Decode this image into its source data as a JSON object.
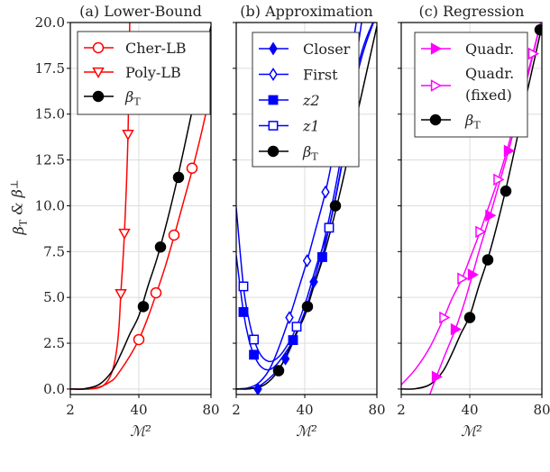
{
  "chart_data": {
    "type": "line",
    "ylabel": "β_T & β^⊥",
    "colors": {
      "red": "#ff0000",
      "blue": "#0000ff",
      "magenta": "#ff00ff",
      "black": "#000000"
    },
    "grid": true,
    "panels": [
      {
        "title": "(a) Lower-Bound",
        "xlabel": "ℳ²",
        "xlim": [
          2,
          80
        ],
        "ylim": [
          -0.3,
          20.0
        ],
        "xticks": [
          2,
          40,
          80
        ],
        "yticks": [
          0.0,
          2.5,
          5.0,
          7.5,
          10.0,
          12.5,
          15.0,
          17.5,
          20.0
        ],
        "ytick_labels": [
          "0.0",
          "2.5",
          "5.0",
          "7.5",
          "10.0",
          "12.5",
          "15.0",
          "17.5",
          "20.0"
        ],
        "legend": "top-right",
        "series": [
          {
            "name": "Cher-LB",
            "color": "#ff0000",
            "marker": "circle",
            "filled": false,
            "curve": [
              [
                2,
                0
              ],
              [
                15,
                0.03
              ],
              [
                25,
                0.45
              ],
              [
                30,
                1.05
              ],
              [
                35,
                1.8
              ],
              [
                40,
                2.7
              ],
              [
                45,
                3.9
              ],
              [
                50,
                5.3
              ],
              [
                55,
                6.8
              ],
              [
                60,
                8.5
              ],
              [
                65,
                10.3
              ],
              [
                70,
                12.1
              ],
              [
                75,
                14.1
              ],
              [
                80,
                16.3
              ]
            ],
            "points": [
              [
                40,
                2.7
              ],
              [
                49.5,
                5.25
              ],
              [
                59.5,
                8.4
              ],
              [
                69.5,
                12.05
              ],
              [
                79,
                16.1
              ]
            ]
          },
          {
            "name": "Poly-LB",
            "color": "#ff0000",
            "marker": "triangle-down",
            "filled": false,
            "curve": [
              [
                2,
                0
              ],
              [
                15,
                0.02
              ],
              [
                21,
                0.25
              ],
              [
                25,
                0.9
              ],
              [
                27.5,
                2.0
              ],
              [
                29,
                3.4
              ],
              [
                30,
                5.2
              ],
              [
                32,
                8.5
              ],
              [
                34,
                13.9
              ],
              [
                35,
                20.5
              ]
            ],
            "points": [
              [
                30,
                5.2
              ],
              [
                32,
                8.5
              ],
              [
                34,
                13.9
              ]
            ]
          },
          {
            "name": "β_T",
            "color": "#000000",
            "marker": "circle",
            "filled": true,
            "curve": [
              [
                2,
                0
              ],
              [
                10,
                0.02
              ],
              [
                18,
                0.25
              ],
              [
                25,
                0.95
              ],
              [
                30,
                1.9
              ],
              [
                35,
                3.0
              ],
              [
                40,
                4.0
              ],
              [
                45,
                5.6
              ],
              [
                50,
                7.1
              ],
              [
                55,
                8.9
              ],
              [
                60,
                10.9
              ],
              [
                65,
                13.1
              ],
              [
                70,
                15.4
              ],
              [
                75,
                17.6
              ],
              [
                80,
                19.8
              ]
            ],
            "points": [
              [
                42.5,
                4.5
              ],
              [
                52,
                7.75
              ],
              [
                62,
                11.55
              ]
            ]
          }
        ]
      },
      {
        "title": "(b) Approximation",
        "xlabel": "ℳ²",
        "xlim": [
          2,
          80
        ],
        "ylim": [
          -0.3,
          20.0
        ],
        "xticks": [
          2,
          40,
          80
        ],
        "yticks": [
          0.0,
          2.5,
          5.0,
          7.5,
          10.0,
          12.5,
          15.0,
          17.5,
          20.0
        ],
        "legend": "top-right",
        "series": [
          {
            "name": "Closer",
            "color": "#0000ff",
            "marker": "diamond",
            "filled": true,
            "curve": [
              [
                2,
                0
              ],
              [
                10,
                0.05
              ],
              [
                14,
                0.12
              ],
              [
                20,
                0.55
              ],
              [
                25,
                1.05
              ],
              [
                29.3,
                1.65
              ],
              [
                35,
                2.9
              ],
              [
                40,
                4.2
              ],
              [
                45,
                5.85
              ],
              [
                50,
                7.8
              ],
              [
                55,
                10.0
              ],
              [
                60,
                12.6
              ],
              [
                65,
                15.6
              ],
              [
                70,
                19.0
              ],
              [
                73,
                21
              ]
            ],
            "points": [
              [
                14,
                0
              ],
              [
                29.3,
                1.65
              ],
              [
                45,
                5.85
              ]
            ]
          },
          {
            "name": "First",
            "color": "#0000ff",
            "marker": "diamond",
            "filled": false,
            "curve": [
              [
                2,
                0
              ],
              [
                8,
                0.05
              ],
              [
                14,
                0.3
              ],
              [
                20,
                1.0
              ],
              [
                25,
                2.1
              ],
              [
                31.5,
                3.9
              ],
              [
                36,
                5.3
              ],
              [
                41.3,
                7.0
              ],
              [
                46,
                8.7
              ],
              [
                51.5,
                10.75
              ],
              [
                56,
                12.9
              ],
              [
                62,
                16.0
              ],
              [
                67,
                19.0
              ],
              [
                70,
                21
              ]
            ],
            "points": [
              [
                31.5,
                3.9
              ],
              [
                41.3,
                7.0
              ],
              [
                51.5,
                10.75
              ]
            ]
          },
          {
            "name": "z2",
            "color": "#0000ff",
            "marker": "square",
            "filled": true,
            "curve": [
              [
                2,
                7.3
              ],
              [
                6,
                4.2
              ],
              [
                9,
                2.7
              ],
              [
                11.8,
                1.87
              ],
              [
                15,
                1.3
              ],
              [
                19,
                1.05
              ],
              [
                23,
                1.2
              ],
              [
                28,
                1.8
              ],
              [
                33.5,
                2.67
              ],
              [
                40,
                4.2
              ],
              [
                45,
                5.6
              ],
              [
                49.7,
                7.2
              ],
              [
                55,
                9.5
              ],
              [
                60,
                12.0
              ],
              [
                70,
                17.8
              ],
              [
                80,
                20.5
              ]
            ],
            "points": [
              [
                6,
                4.2
              ],
              [
                11.8,
                1.87
              ],
              [
                33.5,
                2.67
              ],
              [
                49.7,
                7.2
              ]
            ]
          },
          {
            "name": "z1",
            "color": "#0000ff",
            "marker": "square",
            "filled": false,
            "curve": [
              [
                2,
                9.9
              ],
              [
                6,
                5.6
              ],
              [
                9,
                3.8
              ],
              [
                11.8,
                2.7
              ],
              [
                16,
                1.8
              ],
              [
                21,
                1.5
              ],
              [
                26,
                1.8
              ],
              [
                31,
                2.5
              ],
              [
                35.5,
                3.4
              ],
              [
                41,
                4.9
              ],
              [
                47,
                6.9
              ],
              [
                53.5,
                8.8
              ],
              [
                60,
                11.9
              ],
              [
                70,
                17.5
              ],
              [
                80,
                20.5
              ]
            ],
            "points": [
              [
                6,
                5.6
              ],
              [
                11.8,
                2.7
              ],
              [
                35.5,
                3.4
              ],
              [
                53.5,
                8.8
              ]
            ]
          },
          {
            "name": "β_T",
            "color": "#000000",
            "marker": "circle",
            "filled": true,
            "curve": [
              [
                2,
                0
              ],
              [
                10,
                0.02
              ],
              [
                18,
                0.25
              ],
              [
                25,
                0.95
              ],
              [
                30,
                1.9
              ],
              [
                35,
                3.0
              ],
              [
                40,
                4.0
              ],
              [
                45,
                5.6
              ],
              [
                50,
                7.1
              ],
              [
                55,
                8.9
              ],
              [
                60,
                10.9
              ],
              [
                65,
                13.1
              ],
              [
                70,
                15.4
              ],
              [
                75,
                17.6
              ],
              [
                80,
                19.8
              ]
            ],
            "points": [
              [
                25.5,
                1.0
              ],
              [
                41.5,
                4.5
              ],
              [
                57,
                10.0
              ]
            ]
          }
        ]
      },
      {
        "title": "(c) Regression",
        "xlabel": "ℳ²",
        "xlim": [
          2,
          80
        ],
        "ylim": [
          -0.3,
          20.0
        ],
        "xticks": [
          2,
          40,
          80
        ],
        "yticks": [
          0.0,
          2.5,
          5.0,
          7.5,
          10.0,
          12.5,
          15.0,
          17.5,
          20.0
        ],
        "legend": "top-right",
        "series": [
          {
            "name": "Quadr.",
            "color": "#ff00ff",
            "marker": "triangle-right",
            "filled": true,
            "curve": [
              [
                17.5,
                -0.4
              ],
              [
                21.5,
                0.67
              ],
              [
                26,
                1.8
              ],
              [
                32,
                3.26
              ],
              [
                37,
                4.7
              ],
              [
                41.5,
                6.24
              ],
              [
                46,
                7.8
              ],
              [
                51.2,
                9.47
              ],
              [
                56,
                11.1
              ],
              [
                61.5,
                13.0
              ],
              [
                66,
                14.7
              ],
              [
                70,
                16.2
              ],
              [
                75,
                18.2
              ],
              [
                80,
                20.3
              ]
            ],
            "points": [
              [
                21.5,
                0.67
              ],
              [
                32,
                3.26
              ],
              [
                41.5,
                6.24
              ],
              [
                51.2,
                9.47
              ],
              [
                61.5,
                13.0
              ]
            ]
          },
          {
            "name": "Quadr. (fixed)",
            "color": "#ff00ff",
            "marker": "triangle-right",
            "filled": false,
            "curve": [
              [
                2,
                0.23
              ],
              [
                10,
                1.1
              ],
              [
                18,
                2.3
              ],
              [
                25.7,
                3.9
              ],
              [
                30,
                4.9
              ],
              [
                35.7,
                6.03
              ],
              [
                40,
                7.1
              ],
              [
                45.7,
                8.58
              ],
              [
                50,
                9.8
              ],
              [
                55.7,
                11.43
              ],
              [
                60,
                12.8
              ],
              [
                65,
                14.6
              ],
              [
                70,
                16.4
              ],
              [
                75,
                18.3
              ],
              [
                80,
                20.3
              ]
            ],
            "points": [
              [
                25.7,
                3.9
              ],
              [
                35.7,
                6.03
              ],
              [
                45.7,
                8.58
              ],
              [
                55.7,
                11.43
              ],
              [
                75,
                18.3
              ]
            ]
          },
          {
            "name": "β_T",
            "color": "#000000",
            "marker": "circle",
            "filled": true,
            "curve": [
              [
                2,
                0
              ],
              [
                10,
                0.02
              ],
              [
                18,
                0.25
              ],
              [
                25,
                0.95
              ],
              [
                30,
                1.9
              ],
              [
                35,
                3.0
              ],
              [
                40,
                4.0
              ],
              [
                45,
                5.6
              ],
              [
                50,
                7.1
              ],
              [
                55,
                8.9
              ],
              [
                60,
                10.9
              ],
              [
                65,
                13.1
              ],
              [
                70,
                15.4
              ],
              [
                75,
                17.6
              ],
              [
                80,
                19.8
              ]
            ],
            "points": [
              [
                40,
                3.9
              ],
              [
                50,
                7.05
              ],
              [
                60,
                10.8
              ],
              [
                79,
                19.6
              ]
            ]
          }
        ]
      }
    ]
  }
}
